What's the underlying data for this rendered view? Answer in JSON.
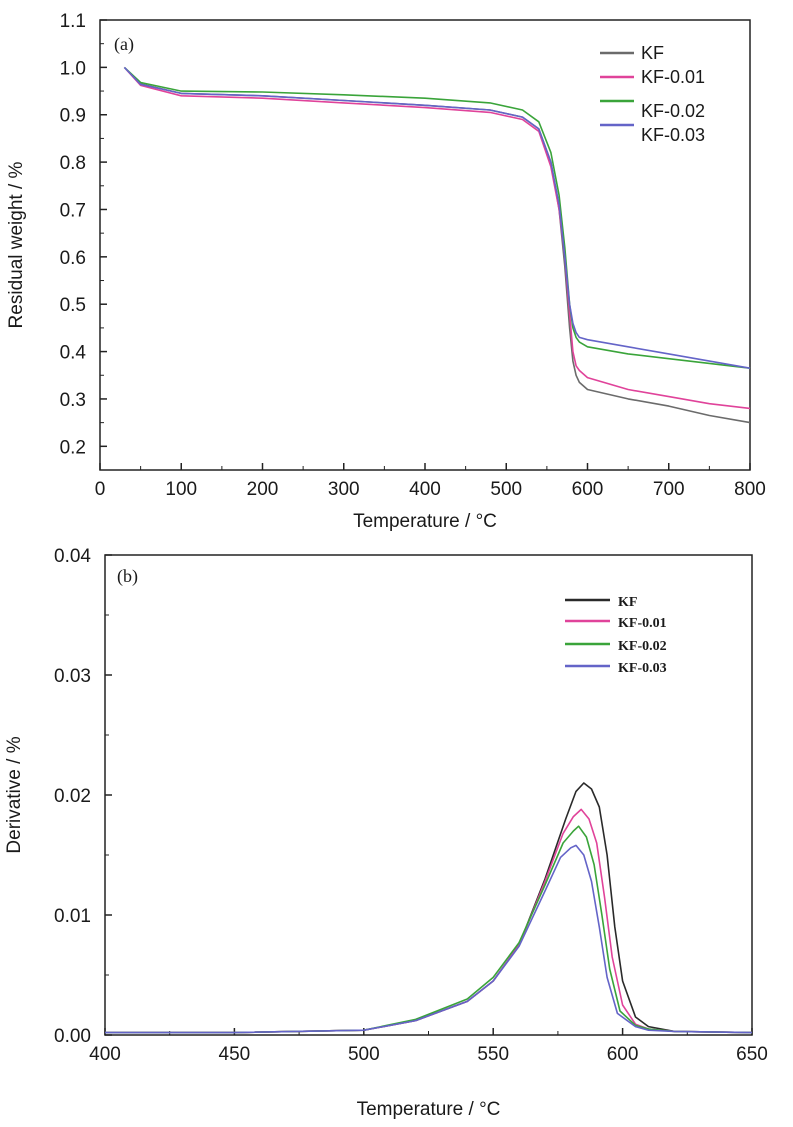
{
  "chart_data": [
    {
      "type": "line",
      "panel": "(a)",
      "xlabel": "Temperature / °C",
      "ylabel": "Residual weight / %",
      "xlim": [
        0,
        800
      ],
      "ylim": [
        0.15,
        1.1
      ],
      "xticks": [
        0,
        100,
        200,
        300,
        400,
        500,
        600,
        700,
        800
      ],
      "yticks": [
        0.2,
        0.3,
        0.4,
        0.5,
        0.6,
        0.7,
        0.8,
        0.9,
        1.0,
        1.1
      ],
      "ytick_labels": [
        "0.2",
        "0.3",
        "0.4",
        "0.5",
        "0.6",
        "0.7",
        "0.8",
        "0.9",
        "1.0",
        "1.1"
      ],
      "grid": false,
      "legend_position": "top-right",
      "series": [
        {
          "name": "KF",
          "color": "#6b6b6b",
          "x": [
            30,
            50,
            100,
            200,
            300,
            400,
            480,
            520,
            540,
            555,
            565,
            572,
            578,
            582,
            586,
            590,
            600,
            650,
            700,
            750,
            800
          ],
          "y": [
            1.0,
            0.965,
            0.945,
            0.94,
            0.93,
            0.92,
            0.91,
            0.895,
            0.87,
            0.8,
            0.7,
            0.58,
            0.45,
            0.38,
            0.35,
            0.335,
            0.32,
            0.3,
            0.285,
            0.265,
            0.25
          ]
        },
        {
          "name": "KF-0.01",
          "color": "#e0439a",
          "x": [
            30,
            50,
            100,
            200,
            300,
            400,
            480,
            520,
            540,
            555,
            565,
            572,
            578,
            582,
            586,
            590,
            600,
            650,
            700,
            750,
            800
          ],
          "y": [
            1.0,
            0.962,
            0.94,
            0.935,
            0.925,
            0.915,
            0.905,
            0.89,
            0.865,
            0.79,
            0.7,
            0.6,
            0.48,
            0.4,
            0.37,
            0.36,
            0.345,
            0.32,
            0.305,
            0.29,
            0.28
          ]
        },
        {
          "name": "KF-0.02",
          "color": "#3aa43a",
          "x": [
            30,
            50,
            100,
            200,
            300,
            400,
            480,
            520,
            540,
            555,
            565,
            572,
            578,
            582,
            586,
            590,
            600,
            650,
            700,
            750,
            800
          ],
          "y": [
            1.0,
            0.968,
            0.95,
            0.948,
            0.942,
            0.935,
            0.925,
            0.91,
            0.885,
            0.82,
            0.73,
            0.62,
            0.5,
            0.45,
            0.43,
            0.42,
            0.41,
            0.395,
            0.385,
            0.375,
            0.365
          ]
        },
        {
          "name": "KF-0.03",
          "color": "#6464c8",
          "x": [
            30,
            50,
            100,
            200,
            300,
            400,
            480,
            520,
            540,
            555,
            565,
            572,
            578,
            582,
            586,
            590,
            600,
            650,
            700,
            750,
            800
          ],
          "y": [
            1.0,
            0.964,
            0.945,
            0.94,
            0.93,
            0.92,
            0.91,
            0.895,
            0.87,
            0.8,
            0.71,
            0.6,
            0.5,
            0.46,
            0.44,
            0.43,
            0.425,
            0.41,
            0.395,
            0.38,
            0.365
          ]
        }
      ]
    },
    {
      "type": "line",
      "panel": "(b)",
      "xlabel": "Temperature / °C",
      "ylabel": "Derivative / %",
      "xlim": [
        400,
        650
      ],
      "ylim": [
        0,
        0.04
      ],
      "xticks": [
        400,
        450,
        500,
        550,
        600,
        650
      ],
      "yticks": [
        0.0,
        0.01,
        0.02,
        0.03,
        0.04
      ],
      "ytick_labels": [
        "0.00",
        "0.01",
        "0.02",
        "0.03",
        "0.04"
      ],
      "grid": false,
      "legend_position": "top-right",
      "series": [
        {
          "name": "KF",
          "color": "#2a2a2a",
          "x": [
            400,
            450,
            500,
            520,
            540,
            550,
            560,
            570,
            578,
            582,
            585,
            588,
            591,
            594,
            597,
            600,
            605,
            610,
            620,
            650
          ],
          "y": [
            0.0002,
            0.0002,
            0.0004,
            0.0012,
            0.0028,
            0.0045,
            0.0075,
            0.013,
            0.018,
            0.0203,
            0.021,
            0.0205,
            0.019,
            0.015,
            0.009,
            0.0045,
            0.0015,
            0.0007,
            0.0003,
            0.0002
          ]
        },
        {
          "name": "KF-0.01",
          "color": "#e0439a",
          "x": [
            400,
            450,
            500,
            520,
            540,
            550,
            560,
            570,
            577,
            581,
            584,
            587,
            590,
            593,
            596,
            600,
            605,
            610,
            620,
            650
          ],
          "y": [
            0.0002,
            0.0002,
            0.0004,
            0.0012,
            0.0028,
            0.0045,
            0.0075,
            0.0128,
            0.0168,
            0.0182,
            0.0188,
            0.018,
            0.016,
            0.0115,
            0.0065,
            0.0025,
            0.0009,
            0.0005,
            0.0003,
            0.0002
          ]
        },
        {
          "name": "KF-0.02",
          "color": "#3aa43a",
          "x": [
            400,
            450,
            500,
            520,
            540,
            550,
            560,
            570,
            577,
            581,
            583,
            586,
            589,
            592,
            595,
            599,
            605,
            610,
            620,
            650
          ],
          "y": [
            0.0002,
            0.0002,
            0.0004,
            0.0013,
            0.003,
            0.0048,
            0.0077,
            0.0125,
            0.016,
            0.017,
            0.0174,
            0.0165,
            0.0142,
            0.01,
            0.0055,
            0.002,
            0.0008,
            0.0005,
            0.0003,
            0.0002
          ]
        },
        {
          "name": "KF-0.03",
          "color": "#6464c8",
          "x": [
            400,
            450,
            500,
            520,
            540,
            550,
            560,
            570,
            576,
            580,
            582,
            585,
            588,
            591,
            594,
            598,
            605,
            610,
            620,
            650
          ],
          "y": [
            0.0002,
            0.0002,
            0.0004,
            0.0012,
            0.0028,
            0.0045,
            0.0074,
            0.012,
            0.0148,
            0.0156,
            0.0158,
            0.015,
            0.0128,
            0.009,
            0.0048,
            0.0018,
            0.0007,
            0.0004,
            0.0003,
            0.0002
          ]
        }
      ]
    }
  ]
}
